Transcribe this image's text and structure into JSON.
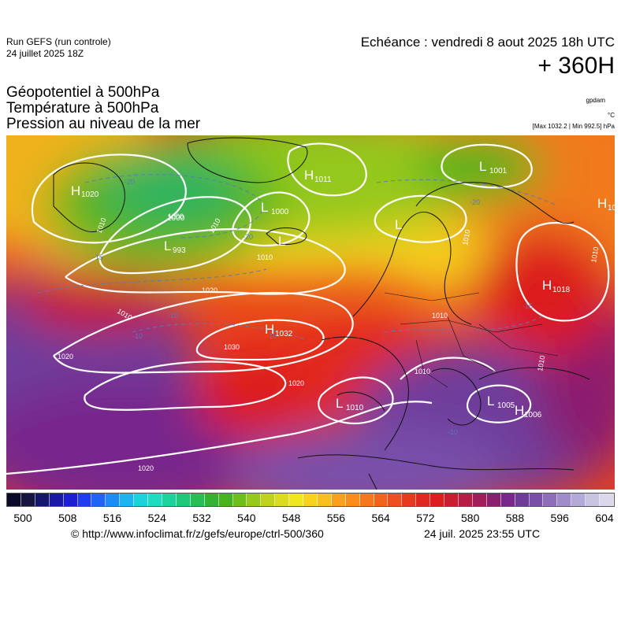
{
  "header": {
    "run_name": "Run GEFS (run controle)",
    "run_date": "24 juillet 2025 18Z",
    "forecast_label": "Echéance : vendredi 8 aout 2025 18h UTC",
    "lead_time": "+ 360H"
  },
  "layers": [
    "Géopotentiel à 500hPa",
    "Température à 500hPa",
    "Pression au niveau de la mer"
  ],
  "units": {
    "geopotential": "gpdam",
    "temperature": "°C",
    "pressure_range": "[Max 1032.2 | Min 992.5] hPa"
  },
  "pressure_centers": [
    {
      "type": "H",
      "value": "1020"
    },
    {
      "type": "L",
      "value": "1000"
    },
    {
      "type": "L",
      "value": "993"
    },
    {
      "type": "H",
      "value": "1011"
    },
    {
      "type": "L",
      "value": ""
    },
    {
      "type": "L",
      "value": ""
    },
    {
      "type": "L",
      "value": "1001"
    },
    {
      "type": "H",
      "value": "10"
    },
    {
      "type": "H",
      "value": "1018"
    },
    {
      "type": "H",
      "value": "1032"
    },
    {
      "type": "L",
      "value": "1010"
    },
    {
      "type": "L",
      "value": "1005"
    },
    {
      "type": "H",
      "value": "1006"
    }
  ],
  "isobar_labels": [
    "1000",
    "1010",
    "1010",
    "1010",
    "1010",
    "1020",
    "1020",
    "1020",
    "1020",
    "1030",
    "1010",
    "1010",
    "1010",
    "1010",
    "1010"
  ],
  "isotherm_labels": [
    "-20",
    "-20",
    "-20",
    "-15",
    "-15",
    "-10",
    "-10",
    "-10",
    "-10"
  ],
  "colorbar": {
    "ticks": [
      "500",
      "508",
      "516",
      "524",
      "532",
      "540",
      "548",
      "556",
      "564",
      "572",
      "580",
      "588",
      "596",
      "604"
    ],
    "colors": [
      "#0a0a2a",
      "#151540",
      "#151570",
      "#1a1aa5",
      "#1e1ed2",
      "#1e3cf0",
      "#1e64f5",
      "#1e8cf5",
      "#1eb4f0",
      "#1ed2dc",
      "#1edcbe",
      "#1ed29b",
      "#1ec878",
      "#28be55",
      "#32b432",
      "#46b41e",
      "#6ebe1e",
      "#96c81e",
      "#bed21e",
      "#dcdc1e",
      "#f0e61e",
      "#fad21e",
      "#fabe1e",
      "#faa01e",
      "#fa8c1e",
      "#f5781e",
      "#f0641e",
      "#eb501e",
      "#e63c1e",
      "#e1281e",
      "#dc1e1e",
      "#c81e32",
      "#b41e46",
      "#a01e5a",
      "#8c1e6e",
      "#78288c",
      "#6e3c9b",
      "#7850aa",
      "#8c6eb9",
      "#a08cc8",
      "#b4aad7",
      "#c8c3e1",
      "#dcd7eb"
    ]
  },
  "footer": {
    "copyright": "© http://www.infoclimat.fr/z/gefs/europe/ctrl-500/360",
    "issue_time": "24 juil. 2025 23:55 UTC"
  }
}
